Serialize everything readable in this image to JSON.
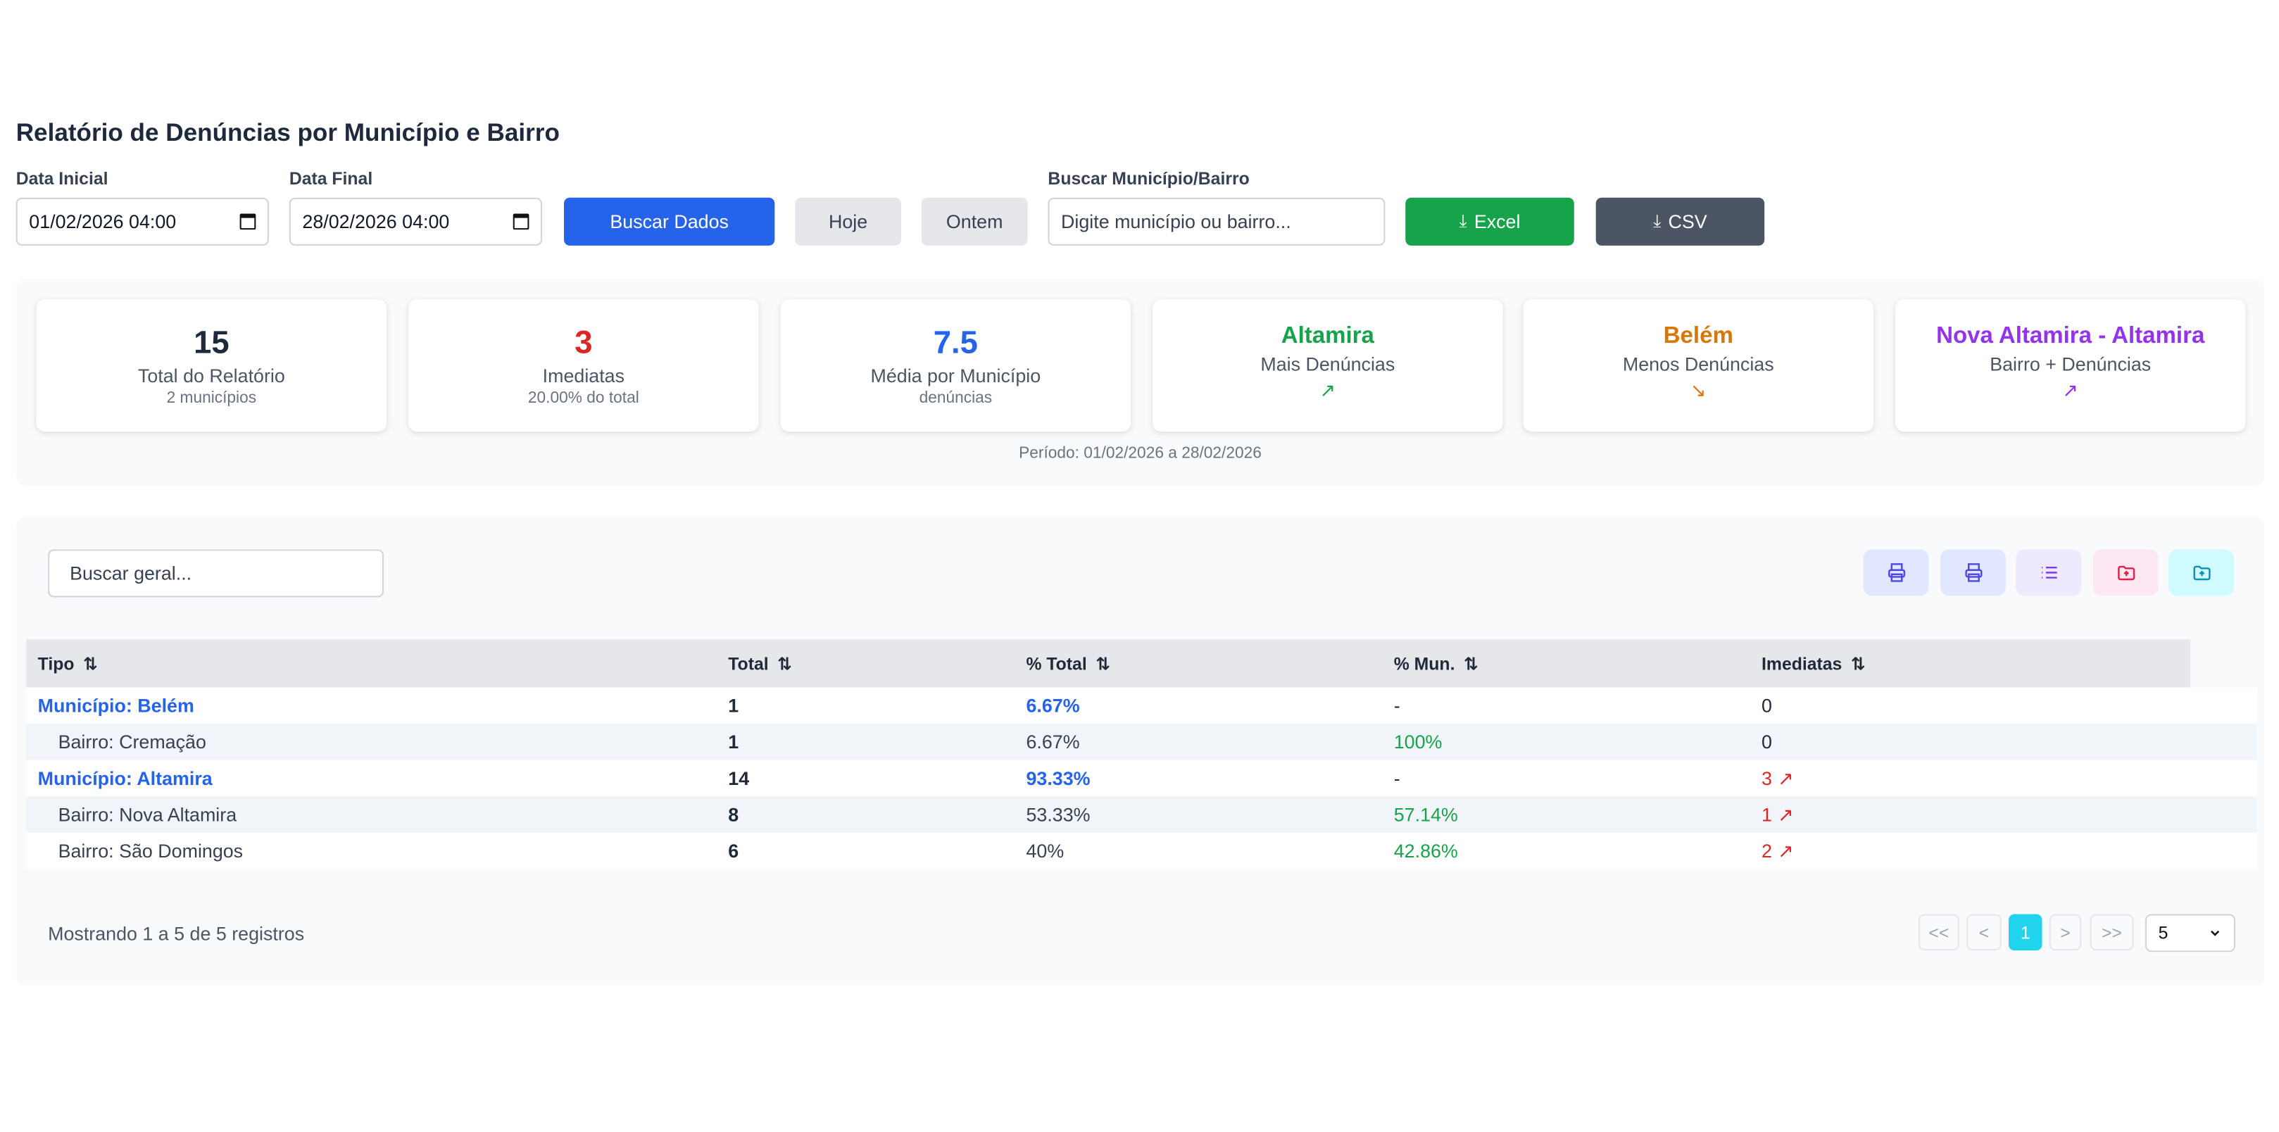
{
  "title": "Relatório de Denúncias por Município e Bairro",
  "filters": {
    "start_label": "Data Inicial",
    "start_value": "01/02/2026 04:00",
    "end_label": "Data Final",
    "end_value": "28/02/2026 04:00",
    "search_btn": "Buscar Dados",
    "today_btn": "Hoje",
    "yesterday_btn": "Ontem",
    "mun_label": "Buscar Município/Bairro",
    "mun_placeholder": "Digite município ou bairro...",
    "excel_btn": "Excel",
    "csv_btn": "CSV"
  },
  "stats": {
    "total": {
      "value": "15",
      "label": "Total do Relatório",
      "sub": "2 municípios"
    },
    "imediatas": {
      "value": "3",
      "label": "Imediatas",
      "sub": "20.00% do total"
    },
    "media": {
      "value": "7.5",
      "label": "Média por Município",
      "sub": "denúncias"
    },
    "mais": {
      "name": "Altamira",
      "label": "Mais Denúncias"
    },
    "menos": {
      "name": "Belém",
      "label": "Menos Denúncias"
    },
    "bairro": {
      "name": "Nova Altamira - Altamira",
      "label": "Bairro + Denúncias"
    },
    "periodo": "Período: 01/02/2026 a 28/02/2026"
  },
  "colors": {
    "primary": "#2563eb",
    "success": "#16a34a",
    "danger": "#dc2626",
    "warning": "#d97706",
    "purple": "#9333ea",
    "active_page": "#22d3ee"
  },
  "table": {
    "search_placeholder": "Buscar geral...",
    "toolbar_icons": [
      "printer-icon",
      "printer-icon",
      "list-icon",
      "folder-upload-icon",
      "folder-upload-icon"
    ],
    "headers": [
      "Tipo",
      "Total",
      "% Total",
      "% Mun.",
      "Imediatas"
    ],
    "rows": [
      {
        "tipo": "Município: Belém",
        "total": "1",
        "pct_total": "6.67%",
        "pct_mun": "-",
        "imediatas": "0"
      },
      {
        "tipo": "Bairro: Cremação",
        "total": "1",
        "pct_total": "6.67%",
        "pct_mun": "100%",
        "imediatas": "0"
      },
      {
        "tipo": "Município: Altamira",
        "total": "14",
        "pct_total": "93.33%",
        "pct_mun": "-",
        "imediatas": "3"
      },
      {
        "tipo": "Bairro: Nova Altamira",
        "total": "8",
        "pct_total": "53.33%",
        "pct_mun": "57.14%",
        "imediatas": "1"
      },
      {
        "tipo": "Bairro: São Domingos",
        "total": "6",
        "pct_total": "40%",
        "pct_mun": "42.86%",
        "imediatas": "2"
      }
    ],
    "footer": "Mostrando 1 a 5 de 5 registros",
    "pagination": {
      "first": "<<",
      "prev": "<",
      "current": "1",
      "next": ">",
      "last": ">>"
    },
    "page_size": "5"
  }
}
